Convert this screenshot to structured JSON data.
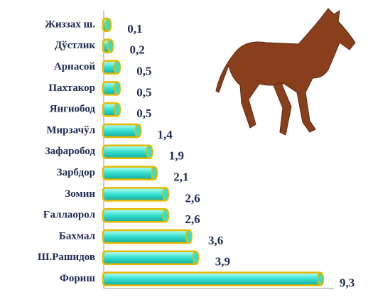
{
  "chart_data": {
    "type": "bar",
    "orientation": "horizontal",
    "categories": [
      "Жиззах ш.",
      "Дўстлик",
      "Арнасой",
      "Пахтакор",
      "Янгиобод",
      "Мирзачўл",
      "Зафаробод",
      "Зарбдор",
      "Зомин",
      "Ғаллаорол",
      "Бахмал",
      "Ш.Рашидов",
      "Фориш"
    ],
    "values": [
      0.1,
      0.2,
      0.5,
      0.5,
      0.5,
      1.4,
      1.9,
      2.1,
      2.6,
      2.6,
      3.6,
      3.9,
      9.3
    ],
    "value_labels": [
      "0,1",
      "0,2",
      "0,5",
      "0,5",
      "0,5",
      "1,4",
      "1,9",
      "2,1",
      "2,6",
      "2,6",
      "3,6",
      "3,9",
      "9,3"
    ],
    "color": "#33e0d0",
    "xlim": [
      0,
      10
    ]
  }
}
